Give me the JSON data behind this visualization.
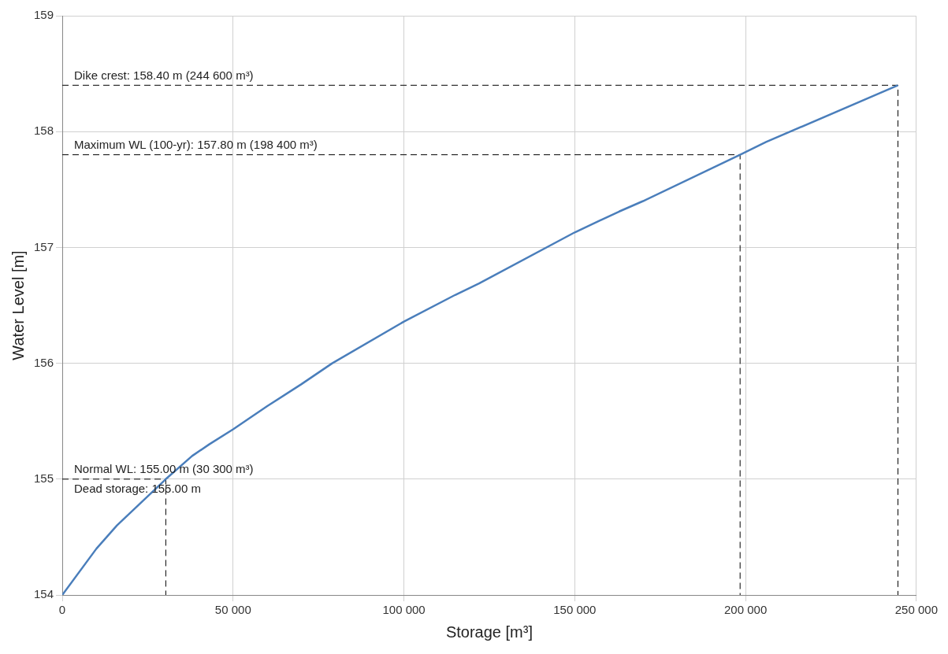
{
  "chart_data": {
    "type": "line",
    "xlabel": "Storage [m³]",
    "ylabel": "Water Level [m]",
    "x": [
      0,
      10000,
      16000,
      30300,
      38000,
      43000,
      50000,
      60000,
      70000,
      79000,
      100000,
      115000,
      122000,
      150000,
      163000,
      170000,
      198400,
      206000,
      244600
    ],
    "series": [
      {
        "color": "#4a7ebb",
        "values": [
          154,
          154.4,
          154.6,
          155,
          155.2,
          155.3,
          155.43,
          155.63,
          155.82,
          156,
          156.36,
          156.59,
          156.69,
          157.13,
          157.31,
          157.4,
          157.8,
          157.91,
          158.4
        ]
      },
      {
        "color": "#000000",
        "line_style": "dashed",
        "x": [
          0,
          244600,
          244600
        ],
        "values": [
          158.4,
          158.4,
          154
        ]
      },
      {
        "color": "#000000",
        "line_style": "dashed",
        "x": [
          0,
          198400,
          198400
        ],
        "values": [
          157.8,
          157.8,
          154
        ]
      },
      {
        "color": "#000000",
        "line_style": "dashed",
        "x": [
          0,
          30300,
          30300
        ],
        "values": [
          155,
          155,
          154
        ]
      }
    ],
    "xlim": [
      0,
      250000
    ],
    "ylim": [
      154,
      159
    ],
    "xticks": [
      0,
      {
        "value": 50000,
        "label": "50 000"
      },
      {
        "value": 100000,
        "label": "100 000"
      },
      {
        "value": 150000,
        "label": "150 000"
      },
      {
        "value": 200000,
        "label": "200 000"
      },
      {
        "value": 250000,
        "label": "250 000"
      }
    ],
    "yticks": [
      154,
      155,
      156,
      157,
      158,
      159
    ],
    "grid": true,
    "marker": "none",
    "line_style": "solid",
    "annotations": [
      "Dike crest: 158.40 m (244 600 m³)",
      "Maximum WL (100-yr): 157.80 m (198 400 m³)",
      "Normal WL: 155.00 m (30 300 m³)",
      "Dead storage: 155.00 m"
    ]
  }
}
